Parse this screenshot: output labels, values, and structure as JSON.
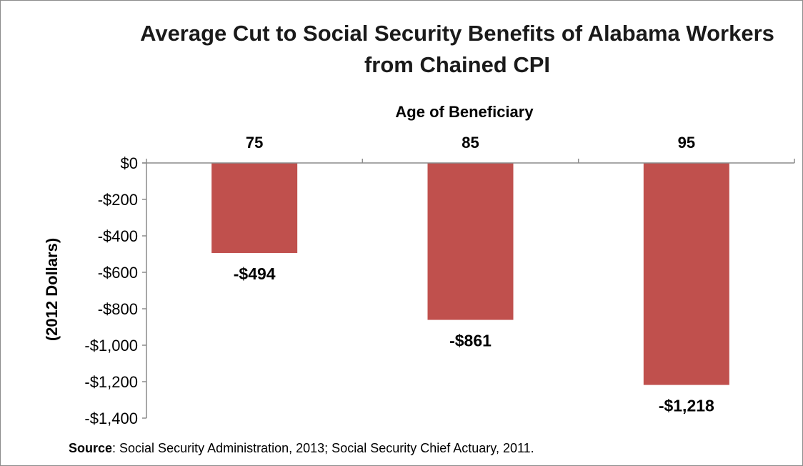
{
  "chart_data": {
    "type": "bar",
    "title_lines": [
      "Average Cut to Social Security Benefits of Alabama Workers",
      "from Chained CPI"
    ],
    "xlabel": "Age of Beneficiary",
    "ylabel": "(2012 Dollars)",
    "categories": [
      "75",
      "85",
      "95"
    ],
    "values": [
      -494,
      -861,
      -1218
    ],
    "data_labels": [
      "-$494",
      "-$861",
      "-$1,218"
    ],
    "ylim": [
      -1400,
      0
    ],
    "yticks": [
      0,
      -200,
      -400,
      -600,
      -800,
      -1000,
      -1200,
      -1400
    ],
    "ytick_labels": [
      "$0",
      "-$200",
      "-$400",
      "-$600",
      "-$800",
      "-$1,000",
      "-$1,200",
      "-$1,400"
    ],
    "x_axis_position": "top",
    "grid": false,
    "bar_color": "#c0504d"
  },
  "source": {
    "label": "Source",
    "text": ":  Social Security Administration, 2013; Social Security Chief Actuary, 2011."
  }
}
